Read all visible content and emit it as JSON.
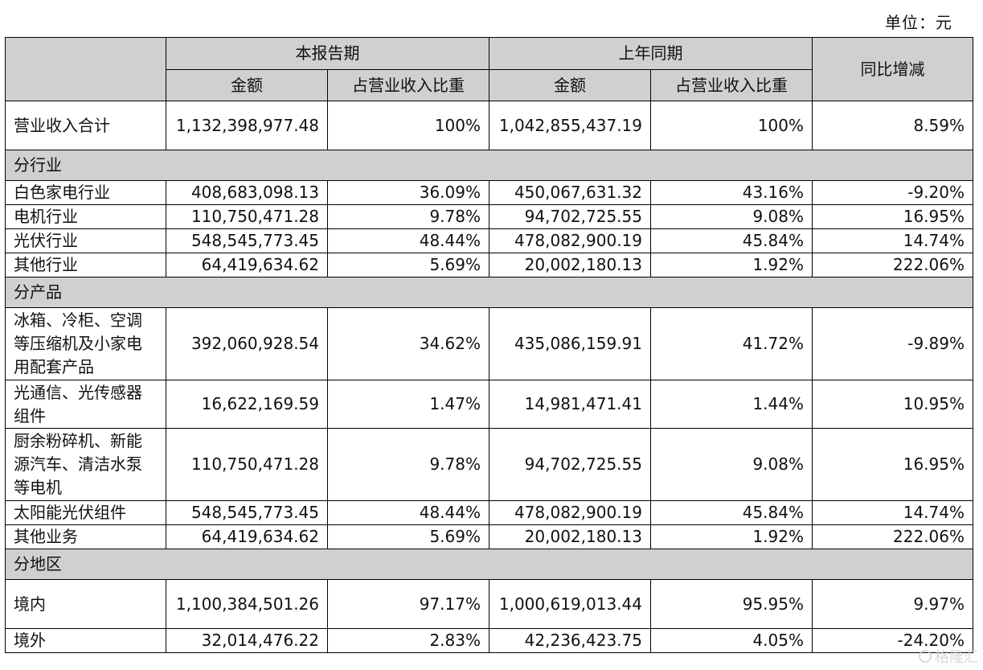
{
  "unit_label": "单位：元",
  "header": {
    "current_period": "本报告期",
    "prior_period": "上年同期",
    "yoy": "同比增减",
    "amount": "金额",
    "share": "占营业收入比重"
  },
  "total": {
    "label": "营业收入合计",
    "cur_amount": "1,132,398,977.48",
    "cur_share": "100%",
    "prev_amount": "1,042,855,437.19",
    "prev_share": "100%",
    "yoy": "8.59%"
  },
  "sections": [
    {
      "title": "分行业",
      "rows": [
        {
          "label": "白色家电行业",
          "cur_amount": "408,683,098.13",
          "cur_share": "36.09%",
          "prev_amount": "450,067,631.32",
          "prev_share": "43.16%",
          "yoy": "-9.20%"
        },
        {
          "label": "电机行业",
          "cur_amount": "110,750,471.28",
          "cur_share": "9.78%",
          "prev_amount": "94,702,725.55",
          "prev_share": "9.08%",
          "yoy": "16.95%"
        },
        {
          "label": "光伏行业",
          "cur_amount": "548,545,773.45",
          "cur_share": "48.44%",
          "prev_amount": "478,082,900.19",
          "prev_share": "45.84%",
          "yoy": "14.74%"
        },
        {
          "label": "其他行业",
          "cur_amount": "64,419,634.62",
          "cur_share": "5.69%",
          "prev_amount": "20,002,180.13",
          "prev_share": "1.92%",
          "yoy": "222.06%"
        }
      ]
    },
    {
      "title": "分产品",
      "rows": [
        {
          "label": "冰箱、冷柜、空调等压缩机及小家电用配套产品",
          "cur_amount": "392,060,928.54",
          "cur_share": "34.62%",
          "prev_amount": "435,086,159.91",
          "prev_share": "41.72%",
          "yoy": "-9.89%"
        },
        {
          "label": "光通信、光传感器组件",
          "cur_amount": "16,622,169.59",
          "cur_share": "1.47%",
          "prev_amount": "14,981,471.41",
          "prev_share": "1.44%",
          "yoy": "10.95%"
        },
        {
          "label": "厨余粉碎机、新能源汽车、清洁水泵等电机",
          "cur_amount": "110,750,471.28",
          "cur_share": "9.78%",
          "prev_amount": "94,702,725.55",
          "prev_share": "9.08%",
          "yoy": "16.95%"
        },
        {
          "label": "太阳能光伏组件",
          "cur_amount": "548,545,773.45",
          "cur_share": "48.44%",
          "prev_amount": "478,082,900.19",
          "prev_share": "45.84%",
          "yoy": "14.74%"
        },
        {
          "label": "其他业务",
          "cur_amount": "64,419,634.62",
          "cur_share": "5.69%",
          "prev_amount": "20,002,180.13",
          "prev_share": "1.92%",
          "yoy": "222.06%"
        }
      ]
    },
    {
      "title": "分地区",
      "rows": [
        {
          "label": "境内",
          "cur_amount": "1,100,384,501.26",
          "cur_share": "97.17%",
          "prev_amount": "1,000,619,013.44",
          "prev_share": "95.95%",
          "yoy": "9.97%"
        },
        {
          "label": "境外",
          "cur_amount": "32,014,476.22",
          "cur_share": "2.83%",
          "prev_amount": "42,236,423.75",
          "prev_share": "4.05%",
          "yoy": "-24.20%"
        }
      ]
    }
  ],
  "watermark": "格隆汇"
}
